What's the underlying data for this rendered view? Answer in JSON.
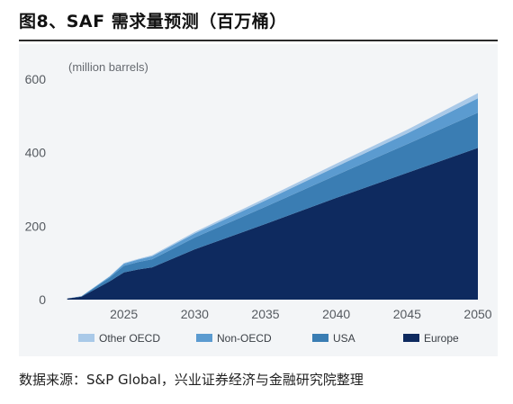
{
  "header": {
    "figure_title": "图8、SAF 需求量预测（百万桶）"
  },
  "footer": {
    "source": "数据来源：S&P Global，兴业证券经济与金融研究院整理"
  },
  "chart_data": {
    "type": "area",
    "stacked": true,
    "title": "",
    "xlabel": "",
    "ylabel": "(million barrels)",
    "xlim": [
      2020,
      2050
    ],
    "ylim": [
      0,
      600
    ],
    "x_ticks": [
      2025,
      2030,
      2035,
      2040,
      2045,
      2050
    ],
    "y_ticks": [
      0,
      200,
      400,
      600
    ],
    "grid": false,
    "legend_position": "bottom",
    "x": [
      2021,
      2022,
      2024,
      2025,
      2026,
      2027,
      2030,
      2035,
      2040,
      2045,
      2050
    ],
    "series": [
      {
        "name": "Europe",
        "color": "#0e2a5f",
        "values": [
          3,
          8,
          50,
          74,
          82,
          88,
          137,
          206,
          277,
          345,
          413
        ]
      },
      {
        "name": "USA",
        "color": "#3a7db3",
        "values": [
          0,
          1,
          10,
          18,
          20,
          22,
          32,
          47,
          62,
          78,
          96
        ]
      },
      {
        "name": "Non-OECD",
        "color": "#5b9bd0",
        "values": [
          0,
          0,
          3,
          6,
          7,
          8,
          11,
          17,
          23,
          29,
          39
        ]
      },
      {
        "name": "Other OECD",
        "color": "#a9c9e8",
        "values": [
          0,
          0,
          1,
          2,
          2,
          3,
          4,
          6,
          8,
          10,
          14
        ]
      }
    ],
    "legend_order": [
      "Other OECD",
      "Non-OECD",
      "USA",
      "Europe"
    ]
  }
}
